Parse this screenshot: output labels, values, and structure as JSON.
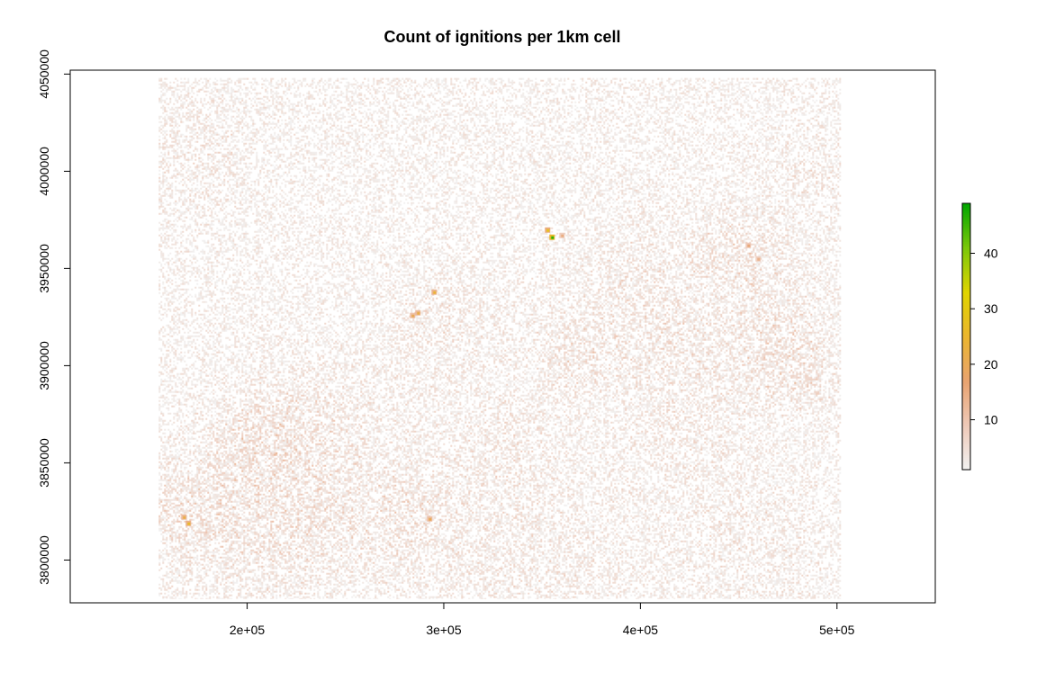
{
  "chart_data": {
    "type": "heatmap",
    "title": "Count of ignitions per 1km cell",
    "xlabel": "",
    "ylabel": "",
    "xlim": [
      110000,
      550000
    ],
    "ylim": [
      3778000,
      4052000
    ],
    "data_extent": {
      "x": [
        155000,
        502000
      ],
      "y": [
        3780000,
        4048000
      ]
    },
    "cell_size_km": 1,
    "x_ticks": [
      200000,
      300000,
      400000,
      500000
    ],
    "x_tick_labels": [
      "2e+05",
      "3e+05",
      "4e+05",
      "5e+05"
    ],
    "y_ticks": [
      3800000,
      3850000,
      3900000,
      3950000,
      4000000,
      4050000
    ],
    "y_tick_labels": [
      "3800000",
      "3850000",
      "3900000",
      "3950000",
      "4000000",
      "4050000"
    ],
    "legend": {
      "position": "right",
      "range": [
        1,
        49
      ],
      "ticks": [
        10,
        20,
        30,
        40
      ],
      "tick_labels": [
        "10",
        "20",
        "30",
        "40"
      ],
      "colors": [
        "#f2f2f2",
        "#eec9b8",
        "#e8a370",
        "#ebb52f",
        "#e0d400",
        "#7cc80a",
        "#00a600"
      ]
    },
    "hotspots": [
      {
        "x": 355000,
        "y": 3966000,
        "count": 46
      },
      {
        "x": 353000,
        "y": 3970000,
        "count": 28
      },
      {
        "x": 295000,
        "y": 3938000,
        "count": 24
      },
      {
        "x": 287000,
        "y": 3927000,
        "count": 22
      },
      {
        "x": 284000,
        "y": 3926000,
        "count": 20
      },
      {
        "x": 293000,
        "y": 3821000,
        "count": 20
      },
      {
        "x": 168000,
        "y": 3822000,
        "count": 22
      },
      {
        "x": 170000,
        "y": 3819000,
        "count": 26
      },
      {
        "x": 455000,
        "y": 3962000,
        "count": 16
      },
      {
        "x": 460000,
        "y": 3955000,
        "count": 14
      },
      {
        "x": 360000,
        "y": 3967000,
        "count": 15
      }
    ],
    "density_clusters": [
      {
        "x": 450000,
        "y": 3960000,
        "spread": 14000,
        "intensity": 0.55
      },
      {
        "x": 470000,
        "y": 3920000,
        "spread": 20000,
        "intensity": 0.45
      },
      {
        "x": 480000,
        "y": 3895000,
        "spread": 12000,
        "intensity": 0.45
      },
      {
        "x": 365000,
        "y": 3908000,
        "spread": 14000,
        "intensity": 0.45
      },
      {
        "x": 230000,
        "y": 3870000,
        "spread": 24000,
        "intensity": 0.45
      },
      {
        "x": 200000,
        "y": 3865000,
        "spread": 14000,
        "intensity": 0.4
      },
      {
        "x": 215000,
        "y": 3820000,
        "spread": 30000,
        "intensity": 0.5
      },
      {
        "x": 280000,
        "y": 3825000,
        "spread": 22000,
        "intensity": 0.45
      },
      {
        "x": 170000,
        "y": 3830000,
        "spread": 18000,
        "intensity": 0.5
      },
      {
        "x": 175000,
        "y": 4010000,
        "spread": 18000,
        "intensity": 0.35
      },
      {
        "x": 490000,
        "y": 4000000,
        "spread": 16000,
        "intensity": 0.3
      },
      {
        "x": 420000,
        "y": 3890000,
        "spread": 30000,
        "intensity": 0.35
      },
      {
        "x": 350000,
        "y": 3800000,
        "spread": 28000,
        "intensity": 0.35
      },
      {
        "x": 450000,
        "y": 3810000,
        "spread": 28000,
        "intensity": 0.3
      },
      {
        "x": 300000,
        "y": 3920000,
        "spread": 22000,
        "intensity": 0.35
      },
      {
        "x": 400000,
        "y": 3940000,
        "spread": 25000,
        "intensity": 0.35
      },
      {
        "x": 330000,
        "y": 3860000,
        "spread": 20000,
        "intensity": 0.3
      }
    ]
  }
}
